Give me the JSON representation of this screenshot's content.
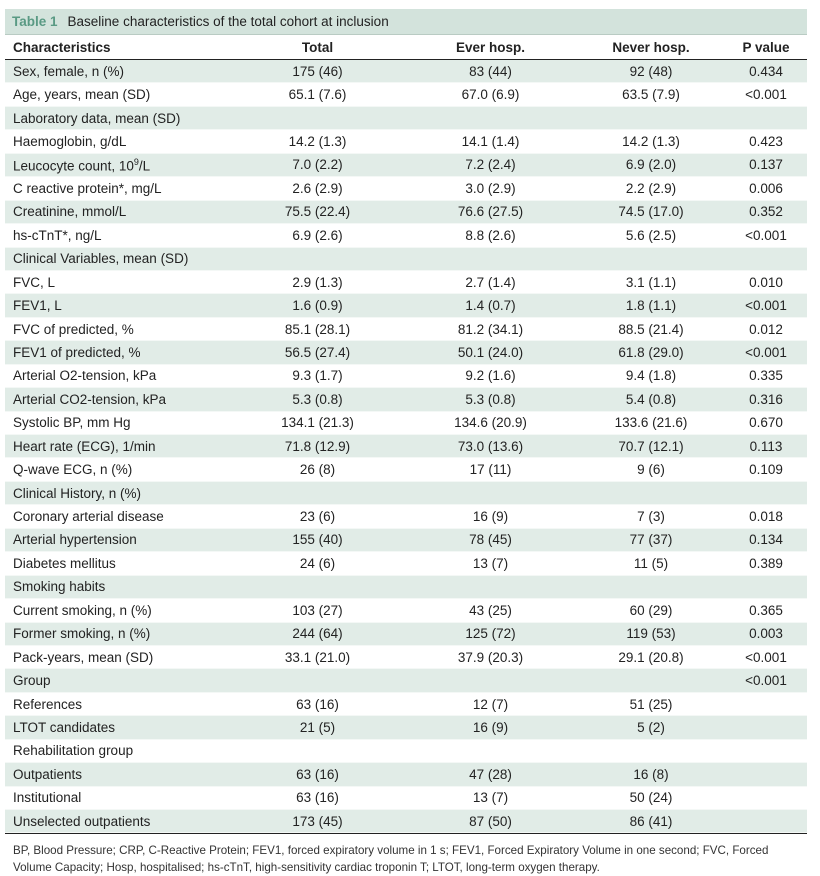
{
  "table": {
    "number": "Table 1",
    "title": "Baseline characteristics of the total cohort at inclusion",
    "headers": [
      "Characteristics",
      "Total",
      "Ever hosp.",
      "Never hosp.",
      "P value"
    ],
    "rows": [
      [
        "Sex, female, n (%)",
        "175 (46)",
        "83 (44)",
        "92 (48)",
        "0.434"
      ],
      [
        "Age, years, mean (SD)",
        "65.1 (7.6)",
        "67.0 (6.9)",
        "63.5 (7.9)",
        "<0.001"
      ],
      [
        "Laboratory data, mean (SD)",
        "",
        "",
        "",
        ""
      ],
      [
        "Haemoglobin, g/dL",
        "14.2 (1.3)",
        "14.1 (1.4)",
        "14.2 (1.3)",
        "0.423"
      ],
      [
        "Leucocyte count, 10",
        "7.0 (2.2)",
        "7.2 (2.4)",
        "6.9 (2.0)",
        "0.137"
      ],
      [
        "C reactive protein*, mg/L",
        "2.6 (2.9)",
        "3.0 (2.9)",
        "2.2 (2.9)",
        "0.006"
      ],
      [
        "Creatinine, mmol/L",
        "75.5 (22.4)",
        "76.6 (27.5)",
        "74.5 (17.0)",
        "0.352"
      ],
      [
        "hs-cTnT*, ng/L",
        "6.9 (2.6)",
        "8.8 (2.6)",
        "5.6 (2.5)",
        "<0.001"
      ],
      [
        "Clinical Variables, mean (SD)",
        "",
        "",
        "",
        ""
      ],
      [
        "FVC, L",
        "2.9 (1.3)",
        "2.7 (1.4)",
        "3.1 (1.1)",
        "0.010"
      ],
      [
        "FEV1, L",
        "1.6 (0.9)",
        "1.4 (0.7)",
        "1.8 (1.1)",
        "<0.001"
      ],
      [
        "FVC of predicted, %",
        "85.1 (28.1)",
        "81.2 (34.1)",
        "88.5 (21.4)",
        "0.012"
      ],
      [
        "FEV1 of predicted, %",
        "56.5 (27.4)",
        "50.1 (24.0)",
        "61.8 (29.0)",
        "<0.001"
      ],
      [
        "Arterial O2-tension, kPa",
        "9.3 (1.7)",
        "9.2 (1.6)",
        "9.4 (1.8)",
        "0.335"
      ],
      [
        "Arterial CO2-tension, kPa",
        "5.3 (0.8)",
        "5.3 (0.8)",
        "5.4 (0.8)",
        "0.316"
      ],
      [
        "Systolic BP, mm Hg",
        "134.1 (21.3)",
        "134.6 (20.9)",
        "133.6 (21.6)",
        "0.670"
      ],
      [
        "Heart rate (ECG), 1/min",
        "71.8 (12.9)",
        "73.0 (13.6)",
        "70.7 (12.1)",
        "0.113"
      ],
      [
        "Q-wave ECG, n (%)",
        "26 (8)",
        "17 (11)",
        "9 (6)",
        "0.109"
      ],
      [
        "Clinical History, n (%)",
        "",
        "",
        "",
        ""
      ],
      [
        "Coronary arterial disease",
        "23 (6)",
        "16 (9)",
        "7 (3)",
        "0.018"
      ],
      [
        "Arterial hypertension",
        "155 (40)",
        "78 (45)",
        "77 (37)",
        "0.134"
      ],
      [
        "Diabetes mellitus",
        "24 (6)",
        "13 (7)",
        "11 (5)",
        "0.389"
      ],
      [
        "Smoking habits",
        "",
        "",
        "",
        ""
      ],
      [
        "Current smoking, n (%)",
        "103 (27)",
        "43 (25)",
        "60 (29)",
        "0.365"
      ],
      [
        "Former smoking, n (%)",
        "244 (64)",
        "125 (72)",
        "119 (53)",
        "0.003"
      ],
      [
        "Pack-years, mean (SD)",
        "33.1 (21.0)",
        "37.9 (20.3)",
        "29.1 (20.8)",
        "<0.001"
      ],
      [
        "Group",
        "",
        "",
        "",
        "<0.001"
      ],
      [
        "References",
        "63 (16)",
        "12 (7)",
        "51 (25)",
        ""
      ],
      [
        "LTOT candidates",
        "21 (5)",
        "16 (9)",
        "5 (2)",
        ""
      ],
      [
        "Rehabilitation group",
        "",
        "",
        "",
        ""
      ],
      [
        "Outpatients",
        "63 (16)",
        "47 (28)",
        "16 (8)",
        ""
      ],
      [
        "Institutional",
        "63 (16)",
        "13 (7)",
        "50 (24)",
        ""
      ],
      [
        "Unselected outpatients",
        "173 (45)",
        "87 (50)",
        "86 (41)",
        ""
      ]
    ],
    "superscript": {
      "row": 4,
      "sup": "9",
      "suffix": "/L"
    },
    "footnote": "BP, Blood Pressure; CRP, C-Reactive Protein; FEV1, forced expiratory volume in 1 s; FEV1, Forced Expiratory Volume in one second; FVC, Forced Volume Capacity; Hosp, hospitalised; hs-cTnT, high-sensitivity cardiac troponin T; LTOT, long-term oxygen therapy."
  },
  "colors": {
    "caption_bg": "#d3e3dc",
    "stripe_bg": "#e1ece7",
    "table_number": "#5a9a84"
  }
}
